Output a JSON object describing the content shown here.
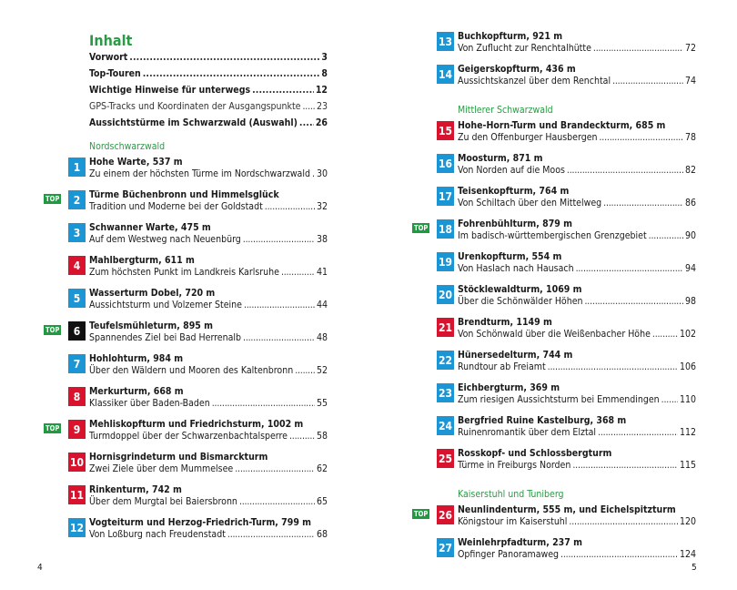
{
  "colors": {
    "heading": "#2b9a45",
    "blue": "#1b95d3",
    "red": "#d7132e",
    "black": "#111111",
    "top_badge": "#1f9a40"
  },
  "left": {
    "title": "Inhalt",
    "front": [
      {
        "label": "Vorwort",
        "page": "3",
        "bold": true
      },
      {
        "label": "Top-Touren",
        "page": "8",
        "bold": true
      },
      {
        "label": "Wichtige Hinweise für unterwegs",
        "page": "12",
        "bold": true
      },
      {
        "label": "GPS-Tracks und Koordinaten der Ausgangspunkte",
        "page": "23",
        "bold": false
      },
      {
        "label": "Aussichtstürme im Schwarzwald (Auswahl)",
        "page": "26",
        "bold": true
      }
    ],
    "blocks": [
      {
        "section": "Nordschwarzwald",
        "entries": [
          {
            "num": "1",
            "color": "blue",
            "top": false,
            "title": "Hohe Warte, 537 m",
            "subtitle": "Zu einem der höchsten Türme im Nordschwarzwald",
            "page": "30"
          },
          {
            "num": "2",
            "color": "blue",
            "top": true,
            "title": "Türme Büchenbronn und Himmelsglück",
            "subtitle": "Tradition und Moderne bei der Goldstadt",
            "page": "32"
          },
          {
            "num": "3",
            "color": "blue",
            "top": false,
            "title": "Schwanner Warte, 475 m",
            "subtitle": "Auf dem Westweg nach Neuenbürg",
            "page": "38"
          },
          {
            "num": "4",
            "color": "red",
            "top": false,
            "title": "Mahlbergturm, 611 m",
            "subtitle": "Zum höchsten Punkt im Landkreis Karlsruhe",
            "page": "41"
          },
          {
            "num": "5",
            "color": "blue",
            "top": false,
            "title": "Wasserturm Dobel, 720 m",
            "subtitle": "Aussichtsturm und Volzemer Steine",
            "page": "44"
          },
          {
            "num": "6",
            "color": "black",
            "top": true,
            "title": "Teufelsmühleturm, 895 m",
            "subtitle": "Spannendes Ziel bei Bad Herrenalb",
            "page": "48"
          },
          {
            "num": "7",
            "color": "blue",
            "top": false,
            "title": "Hohlohturm, 984 m",
            "subtitle": "Über den Wäldern und Mooren des Kaltenbronn",
            "page": "52"
          },
          {
            "num": "8",
            "color": "red",
            "top": false,
            "title": "Merkurturm, 668 m",
            "subtitle": "Klassiker über Baden-Baden",
            "page": "55"
          },
          {
            "num": "9",
            "color": "red",
            "top": true,
            "title": "Mehliskopfturm und Friedrichsturm, 1002 m",
            "subtitle": "Turmdoppel über der Schwarzenbachtalsperre",
            "page": "58"
          },
          {
            "num": "10",
            "color": "red",
            "top": false,
            "title": "Hornisgrindeturm und Bismarckturm",
            "subtitle": "Zwei Ziele über dem Mummelsee",
            "page": "62"
          },
          {
            "num": "11",
            "color": "red",
            "top": false,
            "title": "Rinkenturm, 742 m",
            "subtitle": "Über dem Murgtal bei Baiersbronn",
            "page": "65"
          },
          {
            "num": "12",
            "color": "blue",
            "top": false,
            "title": "Vogteiturm und Herzog-Friedrich-Turm, 799 m",
            "subtitle": "Von Loßburg nach Freudenstadt",
            "page": "68"
          }
        ]
      }
    ],
    "page_number": "4"
  },
  "right": {
    "blocks": [
      {
        "section": "",
        "entries": [
          {
            "num": "13",
            "color": "blue",
            "top": false,
            "title": "Buchkopfturm, 921 m",
            "subtitle": "Von Zuflucht zur Renchtalhütte",
            "page": "72"
          },
          {
            "num": "14",
            "color": "blue",
            "top": false,
            "title": "Geigerskopfturm, 436 m",
            "subtitle": "Aussichtskanzel über dem Renchtal",
            "page": "74"
          }
        ]
      },
      {
        "section": "Mittlerer Schwarzwald",
        "entries": [
          {
            "num": "15",
            "color": "red",
            "top": false,
            "title": "Hohe-Horn-Turm und Brandeckturm, 685 m",
            "subtitle": "Zu den Offenburger Hausbergen",
            "page": "78"
          },
          {
            "num": "16",
            "color": "blue",
            "top": false,
            "title": "Moosturm, 871 m",
            "subtitle": "Von Norden auf die Moos",
            "page": "82"
          },
          {
            "num": "17",
            "color": "blue",
            "top": false,
            "title": "Teisenkopfturm, 764 m",
            "subtitle": "Von Schiltach über den Mittelweg",
            "page": "86"
          },
          {
            "num": "18",
            "color": "blue",
            "top": true,
            "title": "Fohrenbühlturm, 879 m",
            "subtitle": "Im badisch-württembergischen Grenzgebiet",
            "page": "90"
          },
          {
            "num": "19",
            "color": "blue",
            "top": false,
            "title": "Urenkopfturm, 554 m",
            "subtitle": "Von Haslach nach Hausach",
            "page": "94"
          },
          {
            "num": "20",
            "color": "blue",
            "top": false,
            "title": "Stöcklewaldturm, 1069 m",
            "subtitle": "Über die Schönwälder Höhen",
            "page": "98"
          },
          {
            "num": "21",
            "color": "red",
            "top": false,
            "title": "Brendturm, 1149 m",
            "subtitle": "Von Schönwald über die Weißenbacher Höhe",
            "page": "102"
          },
          {
            "num": "22",
            "color": "blue",
            "top": false,
            "title": "Hünersedelturm, 744 m",
            "subtitle": "Rundtour ab Freiamt",
            "page": "106"
          },
          {
            "num": "23",
            "color": "blue",
            "top": false,
            "title": "Eichbergturm, 369 m",
            "subtitle": "Zum riesigen Aussichtsturm bei Emmendingen",
            "page": "110"
          },
          {
            "num": "24",
            "color": "blue",
            "top": false,
            "title": "Bergfried Ruine Kastelburg, 368 m",
            "subtitle": "Ruinenromantik über dem Elztal",
            "page": "112"
          },
          {
            "num": "25",
            "color": "red",
            "top": false,
            "title": "Rosskopf- und Schlossbergturm",
            "subtitle": "Türme in Freiburgs Norden",
            "page": "115"
          }
        ]
      },
      {
        "section": "Kaiserstuhl und Tuniberg",
        "entries": [
          {
            "num": "26",
            "color": "red",
            "top": true,
            "title": "Neunlindenturm, 555 m, und Eichelspitzturm",
            "subtitle": "Königstour im Kaiserstuhl",
            "page": "120"
          },
          {
            "num": "27",
            "color": "blue",
            "top": false,
            "title": "Weinlehrpfadturm, 237 m",
            "subtitle": "Opfinger Panoramaweg",
            "page": "124"
          }
        ]
      }
    ],
    "page_number": "5"
  },
  "top_label": "TOP"
}
